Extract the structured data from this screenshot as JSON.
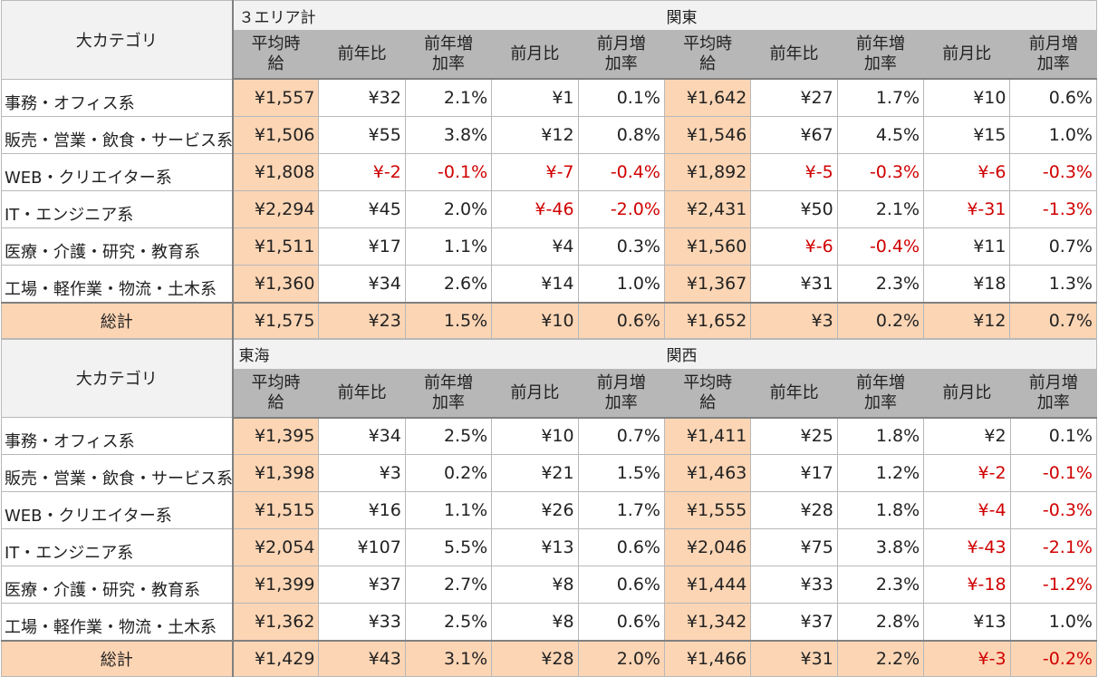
{
  "columns": [
    "平均時給",
    "前年比",
    "前年増加率",
    "前月比",
    "前月増加率"
  ],
  "category_header": "大カテゴリ",
  "total_label": "総計",
  "sections": [
    {
      "left_area": "３エリア計",
      "right_area": "関東",
      "rows": [
        {
          "label": "事務・オフィス系",
          "left": [
            "¥1,557",
            "¥32",
            "2.1%",
            "¥1",
            "0.1%"
          ],
          "right": [
            "¥1,642",
            "¥27",
            "1.7%",
            "¥10",
            "0.6%"
          ]
        },
        {
          "label": "販売・営業・飲食・サービス系",
          "left": [
            "¥1,506",
            "¥55",
            "3.8%",
            "¥12",
            "0.8%"
          ],
          "right": [
            "¥1,546",
            "¥67",
            "4.5%",
            "¥15",
            "1.0%"
          ]
        },
        {
          "label": "WEB・クリエイター系",
          "left": [
            "¥1,808",
            "¥-2",
            "-0.1%",
            "¥-7",
            "-0.4%"
          ],
          "right": [
            "¥1,892",
            "¥-5",
            "-0.3%",
            "¥-6",
            "-0.3%"
          ]
        },
        {
          "label": "IT・エンジニア系",
          "left": [
            "¥2,294",
            "¥45",
            "2.0%",
            "¥-46",
            "-2.0%"
          ],
          "right": [
            "¥2,431",
            "¥50",
            "2.1%",
            "¥-31",
            "-1.3%"
          ]
        },
        {
          "label": "医療・介護・研究・教育系",
          "left": [
            "¥1,511",
            "¥17",
            "1.1%",
            "¥4",
            "0.3%"
          ],
          "right": [
            "¥1,560",
            "¥-6",
            "-0.4%",
            "¥11",
            "0.7%"
          ]
        },
        {
          "label": "工場・軽作業・物流・土木系",
          "left": [
            "¥1,360",
            "¥34",
            "2.6%",
            "¥14",
            "1.0%"
          ],
          "right": [
            "¥1,367",
            "¥31",
            "2.3%",
            "¥18",
            "1.3%"
          ]
        }
      ],
      "total": {
        "left": [
          "¥1,575",
          "¥23",
          "1.5%",
          "¥10",
          "0.6%"
        ],
        "right": [
          "¥1,652",
          "¥3",
          "0.2%",
          "¥12",
          "0.7%"
        ]
      }
    },
    {
      "left_area": "東海",
      "right_area": "関西",
      "rows": [
        {
          "label": "事務・オフィス系",
          "left": [
            "¥1,395",
            "¥34",
            "2.5%",
            "¥10",
            "0.7%"
          ],
          "right": [
            "¥1,411",
            "¥25",
            "1.8%",
            "¥2",
            "0.1%"
          ]
        },
        {
          "label": "販売・営業・飲食・サービス系",
          "left": [
            "¥1,398",
            "¥3",
            "0.2%",
            "¥21",
            "1.5%"
          ],
          "right": [
            "¥1,463",
            "¥17",
            "1.2%",
            "¥-2",
            "-0.1%"
          ]
        },
        {
          "label": "WEB・クリエイター系",
          "left": [
            "¥1,515",
            "¥16",
            "1.1%",
            "¥26",
            "1.7%"
          ],
          "right": [
            "¥1,555",
            "¥28",
            "1.8%",
            "¥-4",
            "-0.3%"
          ]
        },
        {
          "label": "IT・エンジニア系",
          "left": [
            "¥2,054",
            "¥107",
            "5.5%",
            "¥13",
            "0.6%"
          ],
          "right": [
            "¥2,046",
            "¥75",
            "3.8%",
            "¥-43",
            "-2.1%"
          ]
        },
        {
          "label": "医療・介護・研究・教育系",
          "left": [
            "¥1,399",
            "¥37",
            "2.7%",
            "¥8",
            "0.6%"
          ],
          "right": [
            "¥1,444",
            "¥33",
            "2.3%",
            "¥-18",
            "-1.2%"
          ]
        },
        {
          "label": "工場・軽作業・物流・土木系",
          "left": [
            "¥1,362",
            "¥33",
            "2.5%",
            "¥8",
            "0.6%"
          ],
          "right": [
            "¥1,342",
            "¥37",
            "2.8%",
            "¥13",
            "1.0%"
          ]
        }
      ],
      "total": {
        "left": [
          "¥1,429",
          "¥43",
          "3.1%",
          "¥28",
          "2.0%"
        ],
        "right": [
          "¥1,466",
          "¥31",
          "2.2%",
          "¥-3",
          "-0.2%"
        ]
      }
    }
  ],
  "colors": {
    "highlight": "#fcd5b4",
    "header_gray": "#b7b7b7",
    "negative": "#d00000"
  }
}
